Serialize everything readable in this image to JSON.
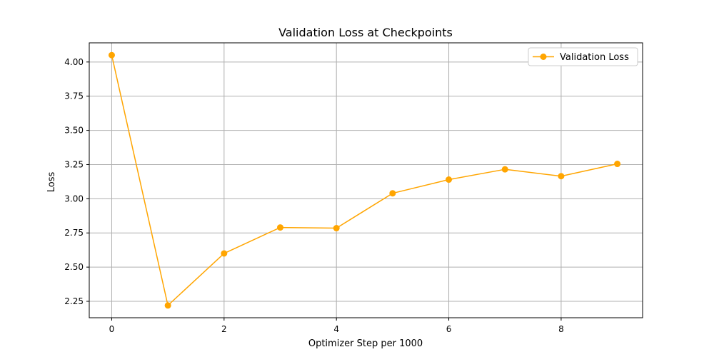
{
  "chart_data": {
    "type": "line",
    "title": "Validation Loss at Checkpoints",
    "xlabel": "Optimizer Step per 1000",
    "ylabel": "Loss",
    "xlim": [
      -0.4,
      9.45
    ],
    "ylim": [
      2.13,
      4.14
    ],
    "xticks": [
      0,
      2,
      4,
      6,
      8
    ],
    "xtick_labels": [
      "0",
      "2",
      "4",
      "6",
      "8"
    ],
    "yticks": [
      2.25,
      2.5,
      2.75,
      3.0,
      3.25,
      3.5,
      3.75,
      4.0
    ],
    "ytick_labels": [
      "2.25",
      "2.50",
      "2.75",
      "3.00",
      "3.25",
      "3.50",
      "3.75",
      "4.00"
    ],
    "grid": true,
    "legend_position": "top-right",
    "series": [
      {
        "name": "Validation Loss",
        "color": "#FFA500",
        "marker": "circle",
        "x": [
          0,
          1,
          2,
          3,
          4,
          5,
          6,
          7,
          8,
          9
        ],
        "y": [
          4.05,
          2.22,
          2.6,
          2.79,
          2.785,
          3.04,
          3.14,
          3.215,
          3.165,
          3.255
        ]
      }
    ]
  }
}
